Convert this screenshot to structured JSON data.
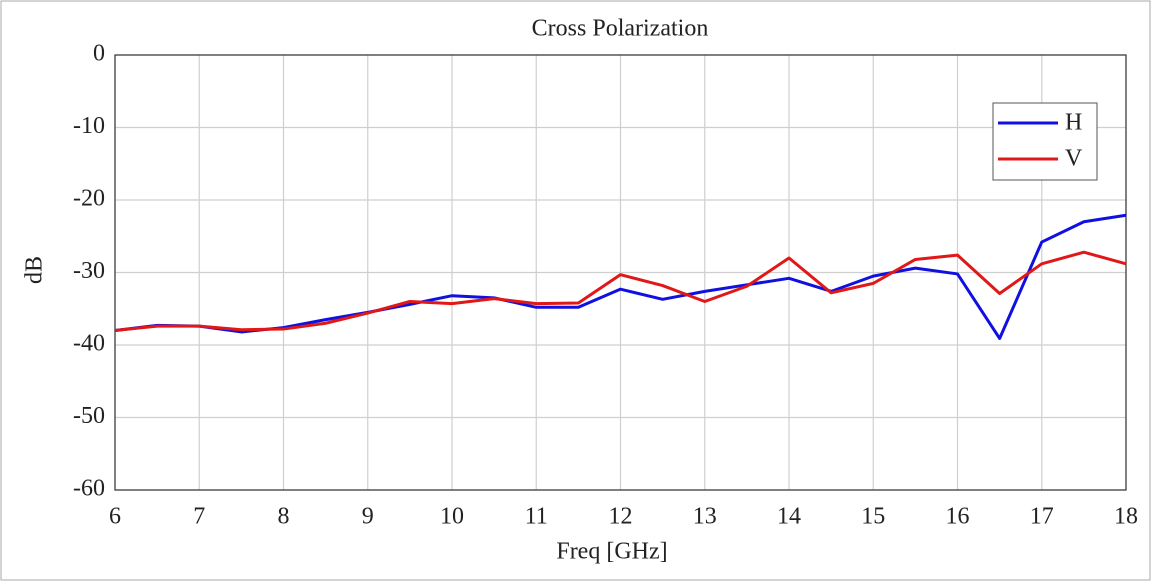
{
  "chart_data": {
    "type": "line",
    "title": "Cross Polarization",
    "xlabel": "Freq [GHz]",
    "ylabel": "dB",
    "x": [
      6,
      6.5,
      7,
      7.5,
      8,
      8.5,
      9,
      9.5,
      10,
      10.5,
      11,
      11.5,
      12,
      12.5,
      13,
      13.5,
      14,
      14.5,
      15,
      15.5,
      16,
      16.5,
      17,
      17.5,
      18
    ],
    "series": [
      {
        "name": "H",
        "color": "#1010e0",
        "values": [
          -38,
          -37.3,
          -37.4,
          -38.2,
          -37.6,
          -36.5,
          -35.5,
          -34.4,
          -33.2,
          -33.5,
          -34.8,
          -34.8,
          -32.3,
          -33.7,
          -32.6,
          -31.7,
          -30.8,
          -32.6,
          -30.5,
          -29.4,
          -30.2,
          -39.1,
          -25.8,
          -23,
          -22.1
        ]
      },
      {
        "name": "V",
        "color": "#e01818",
        "values": [
          -38,
          -37.4,
          -37.4,
          -37.9,
          -37.8,
          -37,
          -35.6,
          -34,
          -34.3,
          -33.6,
          -34.3,
          -34.2,
          -30.3,
          -31.8,
          -34,
          -31.9,
          -28,
          -32.8,
          -31.5,
          -28.2,
          -27.6,
          -32.9,
          -28.8,
          -27.2,
          -28.8
        ]
      }
    ],
    "xlim": [
      6,
      18
    ],
    "xticks": [
      6,
      7,
      8,
      9,
      10,
      11,
      12,
      13,
      14,
      15,
      16,
      17,
      18
    ],
    "ylim": [
      -60,
      0
    ],
    "yticks": [
      -60,
      -50,
      -40,
      -30,
      -20,
      -10,
      0
    ],
    "grid": true,
    "legend": "upper right"
  }
}
